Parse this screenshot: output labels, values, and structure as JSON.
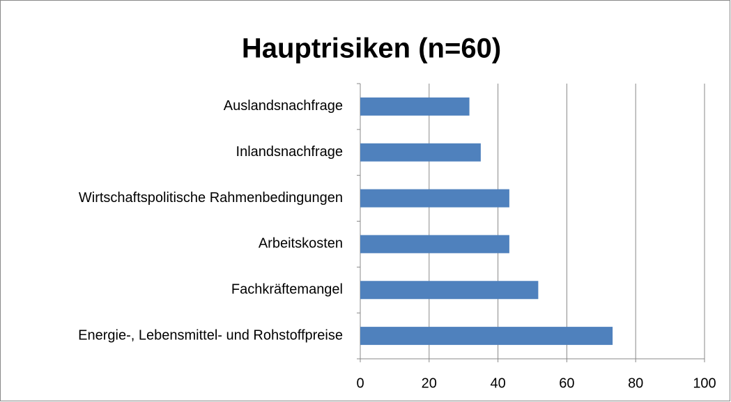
{
  "chart_data": {
    "type": "barh",
    "title": "Hauptrisiken (n=60)",
    "categories": [
      "Auslandsnachfrage",
      "Inlandsnachfrage",
      "Wirtschaftspolitische Rahmenbedingungen",
      "Arbeitskosten",
      "Fachkräftemangel",
      "Energie-, Lebensmittel- und Rohstoffpreise"
    ],
    "values": [
      31.7,
      35,
      43.3,
      43.3,
      51.7,
      73.3
    ],
    "color": "#4f81bd",
    "xlim": [
      0,
      100
    ],
    "xticks": [
      0,
      20,
      40,
      60,
      80,
      100
    ],
    "grid": true
  }
}
